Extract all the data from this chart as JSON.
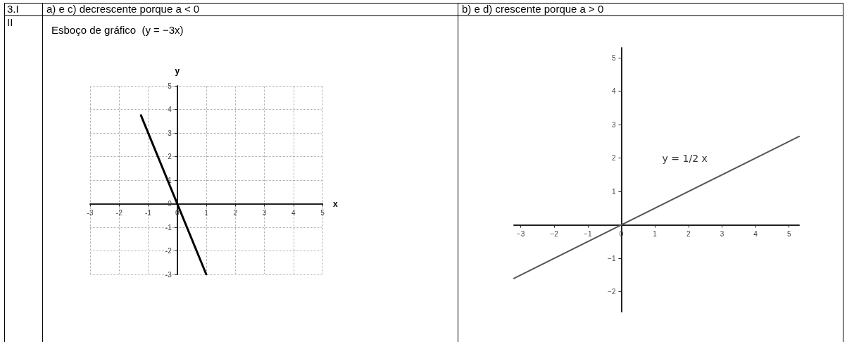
{
  "chart_data": [
    {
      "type": "other",
      "annotations": [
        "3.I",
        "a)  e c) decrescente porque a < 0",
        "b) e d) crescente porque a > 0",
        "II"
      ]
    },
    {
      "type": "line",
      "title": "Esboço de gráfico  (y = −3x)",
      "xlabel": "x",
      "ylabel": "y",
      "x": [
        -1.25,
        1
      ],
      "series": [
        {
          "color": "#000000",
          "values": [
            3.75,
            -3
          ]
        }
      ],
      "xlim": [
        -3,
        5
      ],
      "ylim": [
        -3,
        5
      ],
      "xticks": [
        -3,
        -2,
        -1,
        0,
        1,
        2,
        3,
        4,
        5
      ],
      "yticks": [
        -3,
        -2,
        -1,
        0,
        1,
        2,
        3,
        4,
        5
      ],
      "grid": true,
      "marker": "none",
      "line_style": "solid"
    },
    {
      "type": "line",
      "x": [
        -3.2,
        5.3
      ],
      "series": [
        {
          "color": "#555555",
          "values": [
            -1.6,
            2.65
          ]
        }
      ],
      "xlim": [
        -3.2,
        5.3
      ],
      "ylim": [
        -2.6,
        5.3
      ],
      "xticks": [
        {
          "value": -3,
          "label": "−3"
        },
        {
          "value": -2,
          "label": "−2"
        },
        {
          "value": -1,
          "label": "−1"
        },
        0,
        1,
        2,
        3,
        4,
        5
      ],
      "yticks": [
        {
          "value": -2,
          "label": "−2"
        },
        {
          "value": -1,
          "label": "−1"
        },
        1,
        2,
        3,
        4,
        5
      ],
      "annotations": [
        "y = 1/2 x"
      ],
      "marker": "none",
      "line_style": "solid"
    }
  ]
}
